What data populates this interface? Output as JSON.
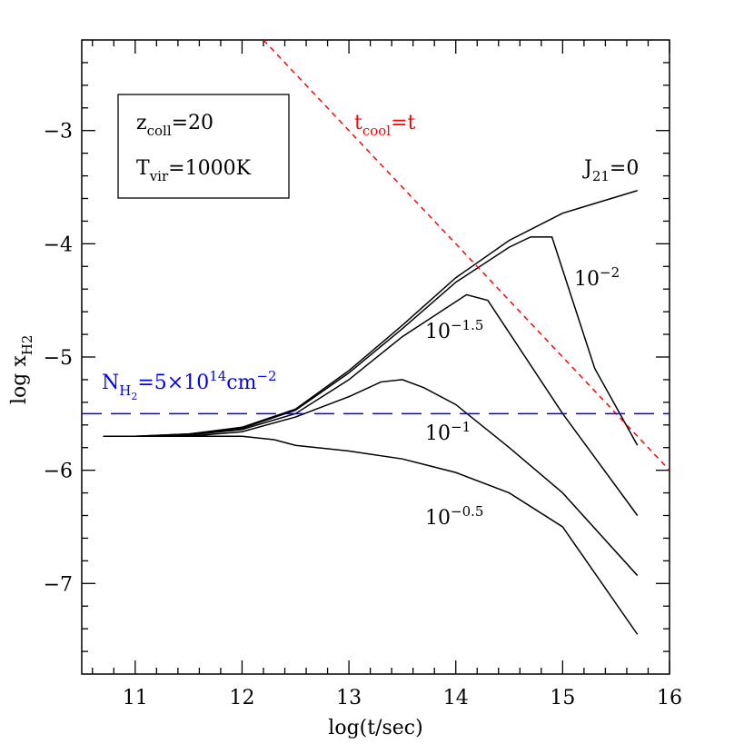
{
  "chart_data": {
    "type": "line",
    "xlabel": "log(t/sec)",
    "ylabel": [
      {
        "text": "log x"
      },
      {
        "text": "H2",
        "script": "sub"
      }
    ],
    "xlim": [
      10.5,
      16
    ],
    "ylim": [
      -7.8,
      -2.2
    ],
    "xticks": [
      11,
      12,
      13,
      14,
      15,
      16
    ],
    "yticks": [
      {
        "value": -7,
        "label": "−7"
      },
      {
        "value": -6,
        "label": "−6"
      },
      {
        "value": -5,
        "label": "−5"
      },
      {
        "value": -4,
        "label": "−4"
      },
      {
        "value": -3,
        "label": "−3"
      }
    ],
    "xminorticks": [
      10.6,
      10.8,
      11.2,
      11.4,
      11.6,
      11.8,
      12.2,
      12.4,
      12.6,
      12.8,
      13.2,
      13.4,
      13.6,
      13.8,
      14.2,
      14.4,
      14.6,
      14.8,
      15.2,
      15.4,
      15.6,
      15.8
    ],
    "yminorticks": [
      -7.6,
      -7.4,
      -7.2,
      -6.8,
      -6.6,
      -6.4,
      -6.2,
      -5.8,
      -5.6,
      -5.4,
      -5.2,
      -4.8,
      -4.6,
      -4.4,
      -4.2,
      -3.8,
      -3.6,
      -3.4,
      -3.2,
      -2.8,
      -2.6,
      -2.4
    ],
    "box": [
      [
        {
          "text": "z"
        },
        {
          "text": "coll",
          "script": "sub"
        },
        {
          "text": "=20"
        }
      ],
      [
        {
          "text": "T"
        },
        {
          "text": "vir",
          "script": "sub"
        },
        {
          "text": "=1000K"
        }
      ]
    ],
    "series": [
      {
        "label": [
          {
            "text": "J"
          },
          {
            "text": "21",
            "script": "sub"
          },
          {
            "text": "=0"
          }
        ],
        "color": "#000000",
        "x": [
          10.7,
          11,
          11.5,
          12,
          12.5,
          13,
          13.5,
          14,
          14.5,
          15,
          15.7
        ],
        "values": [
          -5.7,
          -5.7,
          -5.68,
          -5.62,
          -5.46,
          -5.12,
          -4.72,
          -4.3,
          -3.97,
          -3.73,
          -3.53
        ]
      },
      {
        "label": [
          {
            "text": "10"
          },
          {
            "text": "−2",
            "script": "sup"
          }
        ],
        "color": "#000000",
        "x": [
          10.7,
          11,
          11.5,
          12,
          12.5,
          13,
          13.5,
          14,
          14.5,
          14.7,
          14.9,
          15.3,
          15.7
        ],
        "values": [
          -5.7,
          -5.7,
          -5.68,
          -5.63,
          -5.47,
          -5.14,
          -4.75,
          -4.34,
          -4.03,
          -3.94,
          -3.94,
          -5.1,
          -5.78
        ]
      },
      {
        "label": [
          {
            "text": "10"
          },
          {
            "text": "−1.5",
            "script": "sup"
          }
        ],
        "color": "#000000",
        "x": [
          10.7,
          11,
          11.5,
          12,
          12.5,
          13,
          13.5,
          14.1,
          14.3,
          15,
          15.7
        ],
        "values": [
          -5.7,
          -5.7,
          -5.69,
          -5.64,
          -5.5,
          -5.2,
          -4.82,
          -4.45,
          -4.5,
          -5.5,
          -6.4
        ]
      },
      {
        "label": [
          {
            "text": "10"
          },
          {
            "text": "−1",
            "script": "sup"
          }
        ],
        "color": "#000000",
        "x": [
          10.7,
          11.5,
          12,
          12.5,
          13,
          13.3,
          13.5,
          13.7,
          14,
          14.5,
          15,
          15.7
        ],
        "values": [
          -5.7,
          -5.7,
          -5.66,
          -5.53,
          -5.35,
          -5.22,
          -5.2,
          -5.27,
          -5.42,
          -5.8,
          -6.2,
          -6.93
        ]
      },
      {
        "label": [
          {
            "text": "10"
          },
          {
            "text": "−0.5",
            "script": "sup"
          }
        ],
        "color": "#000000",
        "x": [
          10.7,
          11.5,
          12,
          12.3,
          12.5,
          13,
          13.5,
          14,
          14.5,
          15,
          15.7
        ],
        "values": [
          -5.7,
          -5.7,
          -5.7,
          -5.73,
          -5.78,
          -5.83,
          -5.9,
          -6.02,
          -6.2,
          -6.5,
          -7.45
        ]
      }
    ],
    "lines": [
      {
        "label": [
          {
            "text": "t"
          },
          {
            "text": "cool",
            "script": "sub"
          },
          {
            "text": "=t"
          }
        ],
        "color": "#ff0000",
        "dash": "short",
        "x": [
          12.2,
          16
        ],
        "values": [
          -2.2,
          -6.0
        ]
      },
      {
        "label": [
          {
            "text": "N"
          },
          {
            "text": "H",
            "script": "sub"
          },
          {
            "text": "2",
            "script": "subsub"
          },
          {
            "text": "=5×10"
          },
          {
            "text": "14",
            "script": "sup"
          },
          {
            "text": "cm"
          },
          {
            "text": "−2",
            "script": "sup"
          }
        ],
        "color": "#0000ff",
        "dash": "long",
        "x": [
          10.5,
          16
        ],
        "values": [
          -5.5,
          -5.5
        ]
      }
    ]
  }
}
